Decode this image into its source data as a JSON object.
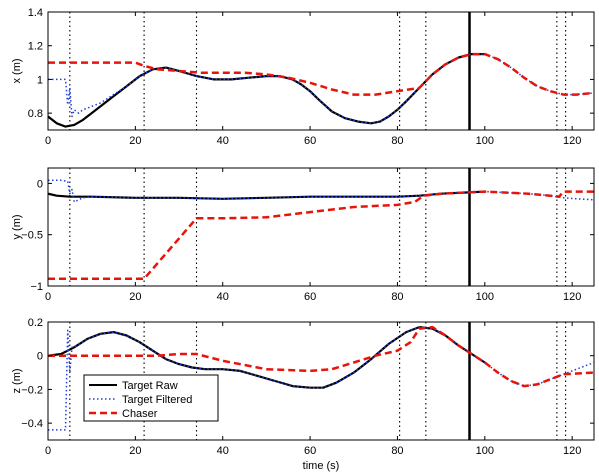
{
  "chart_data": [
    {
      "type": "line",
      "ylabel": "x (m)",
      "xlabel": "",
      "xlim": [
        0,
        125
      ],
      "ylim": [
        0.7,
        1.4
      ],
      "xticks": [
        0,
        20,
        40,
        60,
        80,
        100,
        120
      ],
      "yticks": [
        0.8,
        1.0,
        1.2,
        1.4
      ],
      "ytick_labels": [
        "0.8",
        "1",
        "1.2",
        "1.4"
      ],
      "series": [
        {
          "name": "Target Raw",
          "color": "#000000",
          "style": "solid",
          "x": [
            0,
            2,
            4,
            6,
            8,
            10,
            12,
            15,
            18,
            21,
            24,
            27,
            30,
            34,
            38,
            42,
            46,
            50,
            53,
            56,
            58,
            60,
            62,
            65,
            68,
            71,
            74,
            76,
            78,
            80,
            82,
            85,
            88,
            91,
            94,
            97,
            100
          ],
          "y": [
            0.78,
            0.74,
            0.72,
            0.73,
            0.76,
            0.8,
            0.84,
            0.9,
            0.96,
            1.02,
            1.06,
            1.07,
            1.05,
            1.02,
            1.0,
            1.0,
            1.01,
            1.02,
            1.02,
            1.0,
            0.97,
            0.93,
            0.88,
            0.81,
            0.77,
            0.75,
            0.74,
            0.75,
            0.78,
            0.82,
            0.87,
            0.95,
            1.03,
            1.09,
            1.13,
            1.15,
            1.15
          ]
        },
        {
          "name": "Target Filtered",
          "color": "#1f3fd8",
          "style": "dotted",
          "x": [
            0,
            2,
            4,
            4.5,
            5,
            5.5,
            6,
            7,
            8,
            10,
            12,
            15,
            18,
            21,
            24,
            27,
            30,
            34,
            38,
            42,
            46,
            50,
            53,
            56,
            58,
            60,
            62,
            65,
            68,
            71,
            74,
            76,
            78,
            80,
            82,
            85,
            88,
            91,
            94,
            97,
            100,
            103,
            106,
            109,
            112,
            115,
            118,
            121,
            125
          ],
          "y": [
            1.0,
            1.0,
            1.0,
            0.85,
            0.95,
            0.78,
            0.82,
            0.8,
            0.82,
            0.84,
            0.86,
            0.91,
            0.96,
            1.02,
            1.06,
            1.07,
            1.05,
            1.02,
            1.0,
            1.0,
            1.01,
            1.02,
            1.02,
            1.0,
            0.97,
            0.93,
            0.88,
            0.81,
            0.77,
            0.75,
            0.74,
            0.75,
            0.78,
            0.82,
            0.87,
            0.95,
            1.03,
            1.09,
            1.13,
            1.15,
            1.15,
            1.12,
            1.07,
            1.01,
            0.96,
            0.93,
            0.91,
            0.91,
            0.92
          ]
        },
        {
          "name": "Chaser",
          "color": "#e8140a",
          "style": "dashed",
          "x": [
            0,
            5,
            10,
            15,
            20,
            22,
            25,
            30,
            35,
            40,
            45,
            50,
            55,
            60,
            65,
            70,
            75,
            80,
            85,
            88,
            91,
            94,
            97,
            100,
            103,
            106,
            109,
            112,
            115,
            118,
            121,
            125
          ],
          "y": [
            1.1,
            1.1,
            1.1,
            1.1,
            1.1,
            1.08,
            1.06,
            1.05,
            1.04,
            1.04,
            1.04,
            1.03,
            1.01,
            0.98,
            0.94,
            0.91,
            0.91,
            0.93,
            0.95,
            1.03,
            1.09,
            1.13,
            1.15,
            1.15,
            1.12,
            1.07,
            1.01,
            0.96,
            0.93,
            0.91,
            0.91,
            0.92
          ]
        }
      ]
    },
    {
      "type": "line",
      "ylabel": "y (m)",
      "xlabel": "",
      "xlim": [
        0,
        125
      ],
      "ylim": [
        -1,
        0.15
      ],
      "xticks": [
        0,
        20,
        40,
        60,
        80,
        100,
        120
      ],
      "yticks": [
        -1,
        -0.5,
        0
      ],
      "ytick_labels": [
        "−1",
        "−0.5",
        "0"
      ],
      "series": [
        {
          "name": "Target Raw",
          "color": "#000000",
          "style": "solid",
          "x": [
            0,
            2,
            5,
            10,
            20,
            30,
            40,
            50,
            60,
            70,
            80,
            85,
            90,
            95,
            100
          ],
          "y": [
            -0.1,
            -0.12,
            -0.13,
            -0.13,
            -0.14,
            -0.14,
            -0.15,
            -0.14,
            -0.13,
            -0.13,
            -0.13,
            -0.12,
            -0.1,
            -0.09,
            -0.08
          ]
        },
        {
          "name": "Target Filtered",
          "color": "#1f3fd8",
          "style": "dotted",
          "x": [
            0,
            3,
            4.5,
            5,
            5.5,
            6,
            8,
            10,
            20,
            30,
            40,
            50,
            60,
            70,
            80,
            85,
            90,
            95,
            100,
            105,
            110,
            115,
            118,
            121,
            125
          ],
          "y": [
            0.03,
            0.03,
            0.02,
            -0.1,
            -0.06,
            -0.18,
            -0.14,
            -0.13,
            -0.14,
            -0.14,
            -0.15,
            -0.14,
            -0.13,
            -0.13,
            -0.13,
            -0.12,
            -0.1,
            -0.09,
            -0.08,
            -0.09,
            -0.1,
            -0.12,
            -0.14,
            -0.15,
            -0.16
          ]
        },
        {
          "name": "Chaser",
          "color": "#e8140a",
          "style": "dashed",
          "x": [
            0,
            10,
            20,
            22,
            34,
            40,
            50,
            60,
            70,
            80,
            84,
            86,
            90,
            95,
            100,
            105,
            110,
            115,
            117,
            118,
            125
          ],
          "y": [
            -0.93,
            -0.93,
            -0.93,
            -0.93,
            -0.34,
            -0.34,
            -0.33,
            -0.28,
            -0.23,
            -0.21,
            -0.18,
            -0.12,
            -0.1,
            -0.09,
            -0.08,
            -0.09,
            -0.1,
            -0.12,
            -0.13,
            -0.08,
            -0.08
          ]
        }
      ]
    },
    {
      "type": "line",
      "ylabel": "z (m)",
      "xlabel": "time (s)",
      "xlim": [
        0,
        125
      ],
      "ylim": [
        -0.5,
        0.2
      ],
      "xticks": [
        0,
        20,
        40,
        60,
        80,
        100,
        120
      ],
      "yticks": [
        -0.4,
        -0.2,
        0,
        0.2
      ],
      "ytick_labels": [
        "−0.4",
        "−0.2",
        "0",
        "0.2"
      ],
      "series": [
        {
          "name": "Target Raw",
          "color": "#000000",
          "style": "solid",
          "x": [
            0,
            3,
            6,
            9,
            12,
            15,
            18,
            21,
            24,
            27,
            30,
            33,
            36,
            40,
            44,
            48,
            52,
            56,
            60,
            63,
            66,
            70,
            74,
            78,
            82,
            85,
            88,
            91,
            94,
            97,
            100
          ],
          "y": [
            0.0,
            0.01,
            0.05,
            0.1,
            0.13,
            0.14,
            0.12,
            0.08,
            0.03,
            -0.02,
            -0.05,
            -0.07,
            -0.08,
            -0.08,
            -0.09,
            -0.12,
            -0.15,
            -0.18,
            -0.19,
            -0.19,
            -0.16,
            -0.1,
            -0.02,
            0.07,
            0.14,
            0.17,
            0.16,
            0.12,
            0.06,
            0.01,
            -0.04
          ]
        },
        {
          "name": "Target Filtered",
          "color": "#1f3fd8",
          "style": "dotted",
          "x": [
            0,
            2,
            4,
            4.5,
            5,
            5.5,
            6,
            9,
            12,
            15,
            18,
            21,
            24,
            27,
            30,
            33,
            36,
            40,
            44,
            48,
            52,
            56,
            60,
            63,
            66,
            70,
            74,
            78,
            82,
            85,
            88,
            91,
            94,
            97,
            100,
            103,
            106,
            109,
            112,
            115,
            118,
            121,
            125
          ],
          "y": [
            -0.44,
            -0.44,
            -0.44,
            0.15,
            -0.1,
            0.05,
            0.05,
            0.1,
            0.13,
            0.14,
            0.12,
            0.08,
            0.03,
            -0.02,
            -0.05,
            -0.07,
            -0.08,
            -0.08,
            -0.09,
            -0.12,
            -0.15,
            -0.18,
            -0.19,
            -0.19,
            -0.16,
            -0.1,
            -0.02,
            0.07,
            0.14,
            0.17,
            0.16,
            0.12,
            0.06,
            0.01,
            -0.04,
            -0.1,
            -0.15,
            -0.18,
            -0.17,
            -0.14,
            -0.11,
            -0.08,
            -0.04
          ]
        },
        {
          "name": "Chaser",
          "color": "#e8140a",
          "style": "dashed",
          "x": [
            0,
            5,
            10,
            15,
            20,
            25,
            30,
            34,
            40,
            50,
            60,
            65,
            70,
            75,
            80,
            83,
            85,
            88,
            91,
            94,
            97,
            100,
            103,
            106,
            109,
            112,
            115,
            117,
            118,
            125
          ],
          "y": [
            0.0,
            0.0,
            0.0,
            0.0,
            0.0,
            0.0,
            0.01,
            0.01,
            -0.03,
            -0.08,
            -0.09,
            -0.08,
            -0.04,
            0.0,
            0.03,
            0.08,
            0.16,
            0.17,
            0.12,
            0.06,
            0.01,
            -0.04,
            -0.1,
            -0.15,
            -0.18,
            -0.17,
            -0.14,
            -0.12,
            -0.11,
            -0.1
          ]
        }
      ]
    }
  ],
  "vertical_markers": {
    "dotted_times": [
      5,
      22,
      34,
      80.5,
      86.5,
      116.5,
      118.5
    ],
    "solid_time": 96.5
  },
  "legend": {
    "placement": "lower-left of bottom panel",
    "entries": [
      "Target Raw",
      "Target Filtered",
      "Chaser"
    ]
  }
}
